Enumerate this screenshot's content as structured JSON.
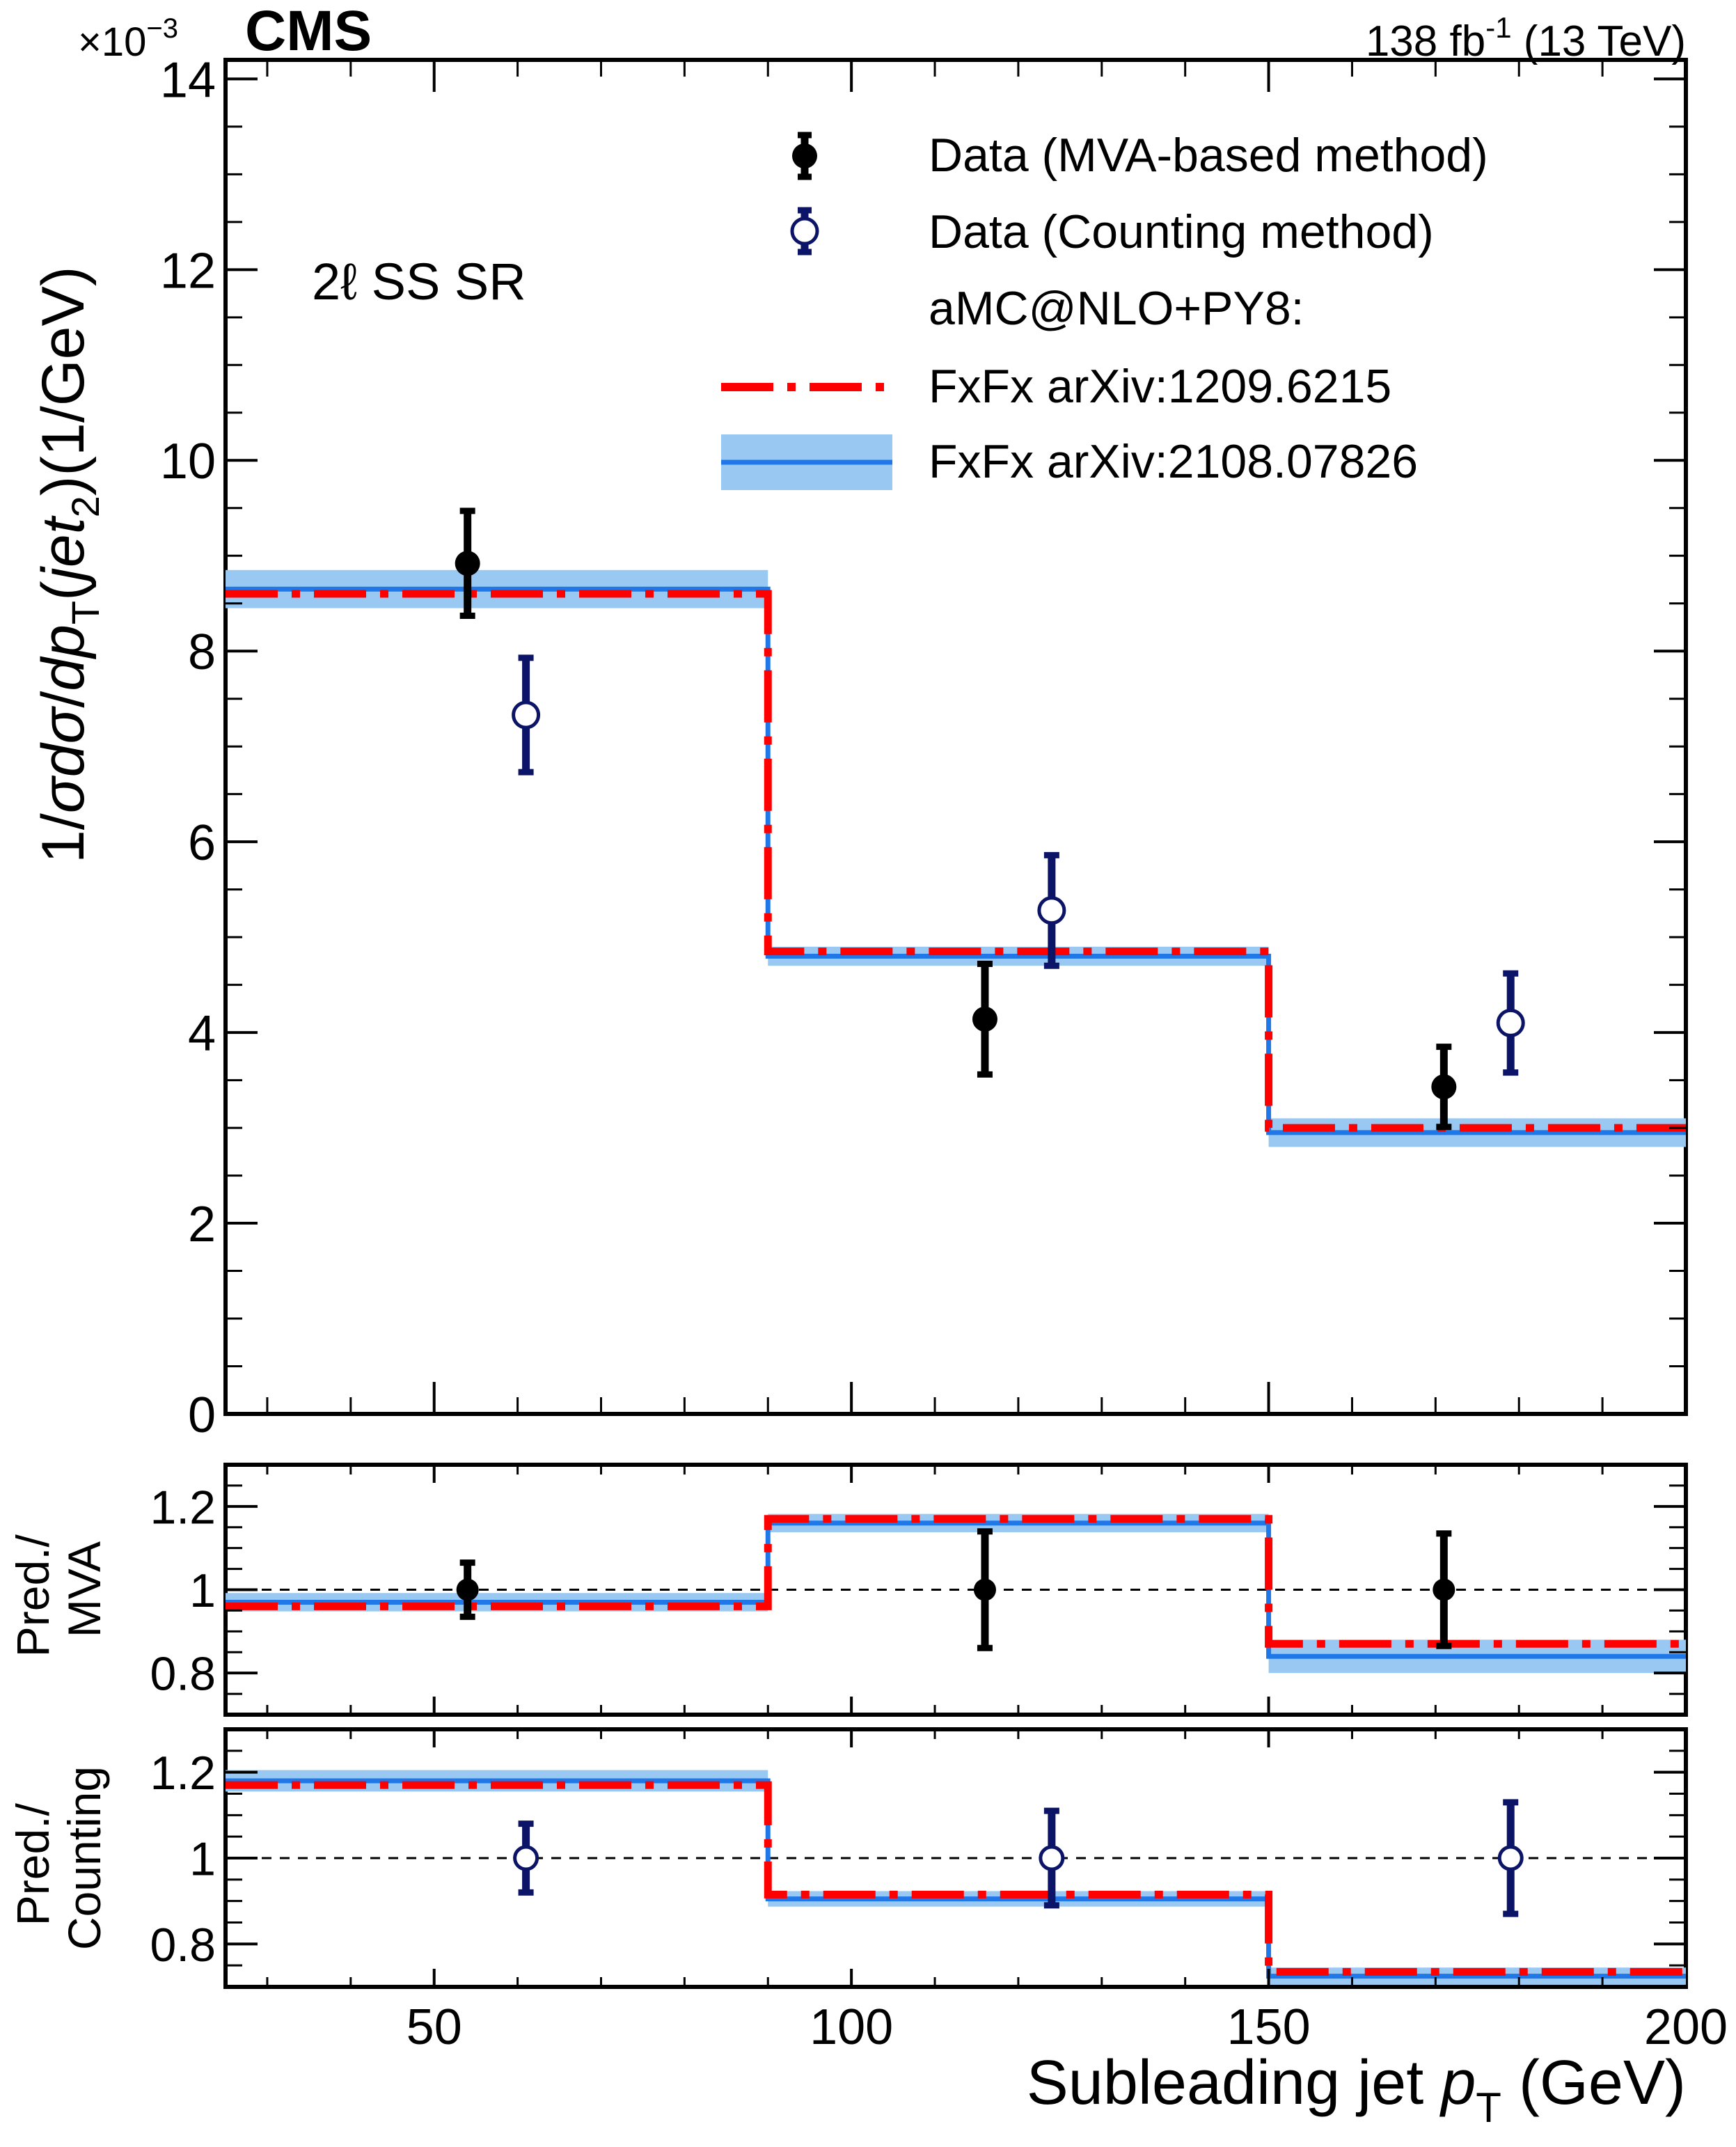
{
  "header": {
    "experiment": "CMS",
    "lumi_text": "138 fb",
    "lumi_exp": "-1",
    "energy_text": " (13 TeV)",
    "y_multiplier": "×10",
    "y_multiplier_exp": "−3"
  },
  "chart_data": [
    {
      "panel": "main",
      "type": "line",
      "region_label": "2ℓ SS SR",
      "ylabel_parts": {
        "p1": "1/",
        "sigma1": "σ",
        "p2": "d",
        "sigma2": "σ",
        "p3": "/",
        "p4": "d",
        "p5": "p",
        "sub1": "T",
        "p6": "(",
        "p7": "jet",
        "sub2": "2",
        "p8": ")(1/GeV)"
      },
      "xlim": [
        25,
        200
      ],
      "ylim": [
        0,
        14.2
      ],
      "y_ticks": [
        "0",
        "2",
        "4",
        "6",
        "8",
        "10",
        "12",
        "14"
      ],
      "bin_edges": [
        25,
        90,
        150,
        200
      ],
      "series": [
        {
          "name": "FxFx arXiv:1209.6215",
          "style": "dashed",
          "color": "#ff0000",
          "values": [
            8.6,
            4.85,
            3.0
          ]
        },
        {
          "name": "FxFx arXiv:2108.07826",
          "style": "solid+band",
          "color": "#1f77e8",
          "band_color": "#99c8f2",
          "values": [
            8.65,
            4.8,
            2.95
          ],
          "band_half_width": [
            0.2,
            0.1,
            0.15
          ]
        }
      ],
      "data_points": [
        {
          "name": "Data (MVA-based method)",
          "color": "#000000",
          "marker": "filled",
          "x": [
            54,
            116,
            171
          ],
          "y": [
            8.92,
            4.14,
            3.43
          ],
          "err": [
            0.55,
            0.58,
            0.42
          ]
        },
        {
          "name": "Data (Counting method)",
          "color": "#0b1466",
          "marker": "open",
          "x": [
            61,
            124,
            179
          ],
          "y": [
            7.33,
            5.28,
            4.1
          ],
          "err": [
            0.6,
            0.58,
            0.52
          ]
        }
      ],
      "legend": {
        "entries": [
          "Data (MVA-based method)",
          "Data (Counting method)",
          "aMC@NLO+PY8:",
          "FxFx arXiv:1209.6215",
          "FxFx arXiv:2108.07826"
        ],
        "placement": "top-right"
      }
    },
    {
      "panel": "ratio-mva",
      "type": "line",
      "ylabel_line1": "Pred./",
      "ylabel_line2": "MVA",
      "xlim": [
        25,
        200
      ],
      "ylim": [
        0.7,
        1.3
      ],
      "y_ticks": [
        "0.8",
        "1",
        "1.2"
      ],
      "series": [
        {
          "name": "FxFx arXiv:1209.6215",
          "values": [
            0.96,
            1.17,
            0.87
          ]
        },
        {
          "name": "FxFx arXiv:2108.07826",
          "values": [
            0.97,
            1.16,
            0.84
          ],
          "band_half_width": [
            0.022,
            0.022,
            0.04
          ]
        }
      ],
      "data_points": [
        {
          "name": "Data (MVA-based method)",
          "x": [
            54,
            116,
            171
          ],
          "y": [
            1.0,
            1.0,
            1.0
          ],
          "err": [
            0.065,
            0.14,
            0.135
          ]
        }
      ]
    },
    {
      "panel": "ratio-counting",
      "type": "line",
      "ylabel_line1": "Pred./",
      "ylabel_line2": "Counting",
      "xlim": [
        25,
        200
      ],
      "ylim": [
        0.7,
        1.3
      ],
      "y_ticks": [
        "0.8",
        "1",
        "1.2"
      ],
      "x_ticks": [
        "50",
        "100",
        "150",
        "200"
      ],
      "xlabel_pre": "Subleading jet ",
      "xlabel_p": "p",
      "xlabel_sub": "T",
      "xlabel_post": " (GeV)",
      "series": [
        {
          "name": "FxFx arXiv:1209.6215",
          "values": [
            1.17,
            0.915,
            0.735
          ]
        },
        {
          "name": "FxFx arXiv:2108.07826",
          "values": [
            1.18,
            0.905,
            0.725
          ],
          "band_half_width": [
            0.025,
            0.018,
            0.02
          ]
        }
      ],
      "data_points": [
        {
          "name": "Data (Counting method)",
          "x": [
            61,
            124,
            179
          ],
          "y": [
            1.0,
            1.0,
            1.0
          ],
          "err": [
            0.08,
            0.11,
            0.13
          ]
        }
      ]
    }
  ]
}
